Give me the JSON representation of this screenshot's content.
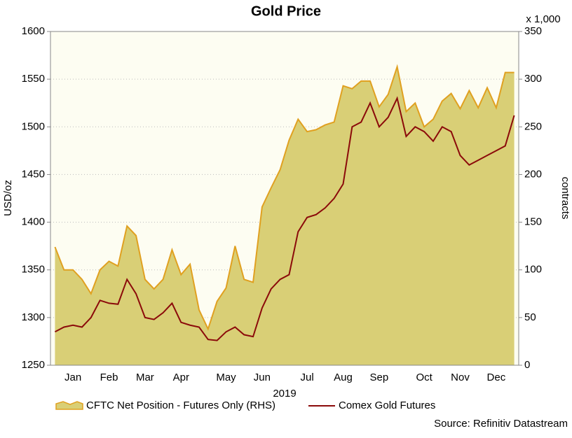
{
  "chart_data": {
    "type": "line",
    "title": "Gold Price",
    "y_label": "USD/oz",
    "y2_label": "contracts",
    "y2_unit": "x 1,000",
    "x_label": "2019",
    "source": "Source: Refinitiv Datastream",
    "categories": [
      null,
      null,
      "Jan",
      null,
      null,
      null,
      "Feb",
      null,
      null,
      null,
      "Mar",
      null,
      null,
      null,
      "Apr",
      null,
      null,
      null,
      null,
      "May",
      null,
      null,
      null,
      "Jun",
      null,
      null,
      null,
      null,
      "Jul",
      null,
      null,
      null,
      "Aug",
      null,
      null,
      null,
      "Sep",
      null,
      null,
      null,
      null,
      "Oct",
      null,
      null,
      null,
      "Nov",
      null,
      null,
      null,
      "Dec",
      null,
      null
    ],
    "ylim": [
      1250,
      1600
    ],
    "yticks": [
      1250,
      1300,
      1350,
      1400,
      1450,
      1500,
      1550,
      1600
    ],
    "y2lim": [
      0,
      350
    ],
    "y2ticks": [
      0,
      50,
      100,
      150,
      200,
      250,
      300,
      350
    ],
    "grid": true,
    "series": [
      {
        "name": "CFTC Net Position - Futures Only (RHS)",
        "type": "area",
        "axis": "y2",
        "color": "#d9cf76",
        "line_color": "#e0a020",
        "values": [
          124,
          100,
          100,
          90,
          75,
          100,
          109,
          104,
          146,
          136,
          90,
          80,
          90,
          121,
          95,
          106,
          58,
          38,
          67,
          81,
          125,
          90,
          87,
          166,
          186,
          205,
          236,
          258,
          245,
          247,
          252,
          255,
          293,
          290,
          298,
          298,
          271,
          284,
          313,
          266,
          275,
          250,
          258,
          277,
          285,
          269,
          288,
          270,
          291,
          270,
          307,
          307
        ]
      },
      {
        "name": "Comex Gold Futures",
        "type": "line",
        "color": "#8b0a0a",
        "values": [
          1285,
          1290,
          1292,
          1290,
          1300,
          1318,
          1315,
          1314,
          1340,
          1325,
          1300,
          1298,
          1305,
          1315,
          1295,
          1292,
          1290,
          1277,
          1276,
          1285,
          1290,
          1282,
          1280,
          1310,
          1330,
          1340,
          1345,
          1390,
          1405,
          1408,
          1415,
          1425,
          1440,
          1500,
          1505,
          1525,
          1500,
          1510,
          1530,
          1490,
          1500,
          1495,
          1485,
          1500,
          1495,
          1470,
          1460,
          1465,
          1470,
          1475,
          1480,
          1512
        ]
      }
    ]
  }
}
